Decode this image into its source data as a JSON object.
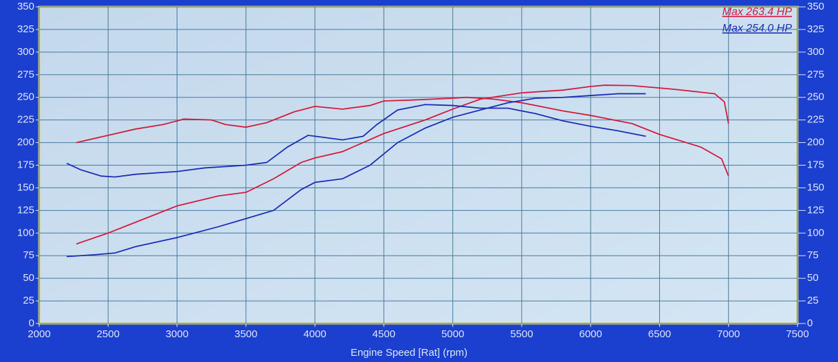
{
  "chart_data": {
    "type": "line",
    "x_label": "Engine Speed [Rat] (rpm)",
    "xlim": [
      2000,
      7500
    ],
    "xticks": [
      2000,
      2500,
      3000,
      3500,
      4000,
      4500,
      5000,
      5500,
      6000,
      6500,
      7000,
      7500
    ],
    "ylim": [
      0,
      350
    ],
    "yticks": [
      0,
      25,
      50,
      75,
      100,
      125,
      150,
      175,
      200,
      225,
      250,
      275,
      300,
      325,
      350
    ],
    "y2lim": [
      0,
      350
    ],
    "y2ticks": [
      0,
      25,
      50,
      75,
      100,
      125,
      150,
      175,
      200,
      225,
      250,
      275,
      300,
      325,
      350
    ],
    "grid": true,
    "legend": "upper right",
    "series": [
      {
        "name": "Max 263.4 HP",
        "color": "#d21c3c",
        "x": [
          2270,
          2500,
          2700,
          3000,
          3300,
          3500,
          3700,
          3900,
          4000,
          4200,
          4500,
          4800,
          5000,
          5200,
          5500,
          5800,
          6000,
          6100,
          6300,
          6600,
          6900,
          6970,
          7000
        ],
        "values": [
          88,
          100,
          112,
          130,
          141,
          145,
          160,
          178,
          183,
          190,
          210,
          225,
          237,
          248,
          255,
          258,
          262,
          263.4,
          263,
          259,
          254,
          245,
          221
        ]
      },
      {
        "color": "#d21c3c",
        "x": [
          2270,
          2500,
          2700,
          2900,
          3050,
          3250,
          3350,
          3500,
          3650,
          3850,
          4000,
          4200,
          4400,
          4500,
          4700,
          5000,
          5100,
          5300,
          5500,
          5800,
          6000,
          6300,
          6500,
          6800,
          6950,
          7000
        ],
        "values": [
          200,
          208,
          215,
          220,
          226,
          225,
          220,
          217,
          222,
          234,
          240,
          237,
          241,
          246,
          247,
          249,
          250,
          248,
          244,
          235,
          230,
          221,
          209,
          195,
          182,
          163
        ]
      },
      {
        "name": "Max 254.0 HP",
        "color": "#1c2db5",
        "x": [
          2200,
          2400,
          2550,
          2700,
          3000,
          3300,
          3500,
          3700,
          3900,
          4000,
          4200,
          4400,
          4600,
          4800,
          5000,
          5200,
          5400,
          5600,
          5800,
          6000,
          6200,
          6300,
          6400
        ],
        "values": [
          74,
          76,
          78,
          85,
          95,
          107,
          116,
          125,
          148,
          156,
          160,
          175,
          200,
          216,
          228,
          236,
          244,
          249,
          250,
          252,
          254,
          254,
          254
        ]
      },
      {
        "color": "#1c2db5",
        "x": [
          2200,
          2300,
          2450,
          2550,
          2700,
          2900,
          3000,
          3200,
          3500,
          3650,
          3800,
          3950,
          4050,
          4200,
          4350,
          4450,
          4600,
          4800,
          5000,
          5200,
          5400,
          5600,
          5800,
          6000,
          6200,
          6400
        ],
        "values": [
          177,
          170,
          163,
          162,
          165,
          167,
          168,
          172,
          175,
          178,
          195,
          208,
          206,
          203,
          207,
          220,
          236,
          242,
          241,
          238,
          238,
          232,
          224,
          218,
          213,
          207
        ]
      }
    ]
  }
}
